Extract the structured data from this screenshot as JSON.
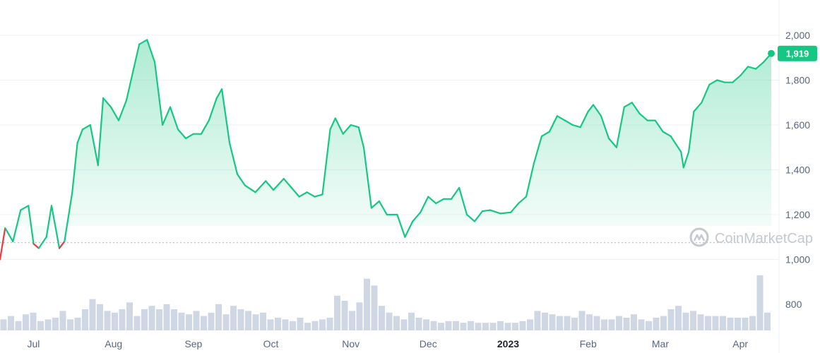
{
  "chart_data": {
    "type": "area",
    "title": "",
    "xlabel": "",
    "ylabel": "",
    "ylim": [
      900,
      2100
    ],
    "y_ticks": [
      1000,
      1200,
      1400,
      1600,
      1800,
      2000
    ],
    "y_tick_labels": [
      "1,000",
      "1,200",
      "1,400",
      "1,600",
      "1,800",
      "2,000"
    ],
    "volume_tick_label": "800",
    "x_tick_labels": [
      "Jul",
      "Aug",
      "Sep",
      "Oct",
      "Nov",
      "Dec",
      "2023",
      "Feb",
      "Mar",
      "Apr"
    ],
    "x_start": "2022-06-18",
    "x_end": "2023-04-13",
    "reference_value": 1075,
    "current_value": 1919,
    "current_value_label": "1,919",
    "watermark": "CoinMarketCap",
    "grid": true,
    "colors": {
      "up": "#16c784",
      "down": "#ea3943",
      "volume": "#cfd6e4",
      "grid": "#eff2f5",
      "axis_text": "#58667e"
    },
    "series": [
      {
        "x": [
          "2022-06-18",
          "2022-06-20",
          "2022-06-23",
          "2022-06-26",
          "2022-06-29",
          "2022-07-01",
          "2022-07-03",
          "2022-07-06",
          "2022-07-08",
          "2022-07-11",
          "2022-07-13",
          "2022-07-16",
          "2022-07-18",
          "2022-07-20",
          "2022-07-23",
          "2022-07-26",
          "2022-07-28",
          "2022-07-31",
          "2022-08-03",
          "2022-08-06",
          "2022-08-09",
          "2022-08-11",
          "2022-08-14",
          "2022-08-17",
          "2022-08-20",
          "2022-08-23",
          "2022-08-26",
          "2022-08-29",
          "2022-09-01",
          "2022-09-04",
          "2022-09-07",
          "2022-09-10",
          "2022-09-12",
          "2022-09-15",
          "2022-09-18",
          "2022-09-21",
          "2022-09-25",
          "2022-09-29",
          "2022-10-02",
          "2022-10-06",
          "2022-10-09",
          "2022-10-12",
          "2022-10-15",
          "2022-10-18",
          "2022-10-21",
          "2022-10-24",
          "2022-10-26",
          "2022-10-29",
          "2022-11-01",
          "2022-11-04",
          "2022-11-06",
          "2022-11-09",
          "2022-11-12",
          "2022-11-15",
          "2022-11-19",
          "2022-11-22",
          "2022-11-25",
          "2022-11-28",
          "2022-12-01",
          "2022-12-04",
          "2022-12-07",
          "2022-12-10",
          "2022-12-13",
          "2022-12-16",
          "2022-12-19",
          "2022-12-22",
          "2022-12-25",
          "2022-12-29",
          "2023-01-02",
          "2023-01-05",
          "2023-01-08",
          "2023-01-11",
          "2023-01-14",
          "2023-01-17",
          "2023-01-20",
          "2023-01-23",
          "2023-01-26",
          "2023-01-29",
          "2023-02-01",
          "2023-02-03",
          "2023-02-06",
          "2023-02-09",
          "2023-02-12",
          "2023-02-15",
          "2023-02-18",
          "2023-02-21",
          "2023-02-24",
          "2023-02-27",
          "2023-03-02",
          "2023-03-05",
          "2023-03-09",
          "2023-03-10",
          "2023-03-12",
          "2023-03-14",
          "2023-03-17",
          "2023-03-20",
          "2023-03-23",
          "2023-03-26",
          "2023-03-29",
          "2023-04-01",
          "2023-04-04",
          "2023-04-07",
          "2023-04-10",
          "2023-04-13"
        ],
        "y": [
          1000,
          1140,
          1080,
          1220,
          1240,
          1070,
          1050,
          1100,
          1240,
          1050,
          1080,
          1300,
          1520,
          1580,
          1600,
          1420,
          1720,
          1680,
          1620,
          1710,
          1860,
          1960,
          1980,
          1880,
          1600,
          1680,
          1580,
          1540,
          1560,
          1560,
          1620,
          1720,
          1760,
          1520,
          1380,
          1330,
          1300,
          1350,
          1310,
          1360,
          1320,
          1280,
          1300,
          1280,
          1290,
          1580,
          1630,
          1560,
          1600,
          1590,
          1500,
          1230,
          1260,
          1200,
          1200,
          1100,
          1170,
          1210,
          1280,
          1250,
          1270,
          1270,
          1320,
          1200,
          1170,
          1215,
          1220,
          1205,
          1210,
          1250,
          1280,
          1430,
          1550,
          1570,
          1640,
          1620,
          1600,
          1590,
          1660,
          1690,
          1640,
          1540,
          1500,
          1680,
          1700,
          1650,
          1620,
          1620,
          1570,
          1550,
          1480,
          1410,
          1480,
          1660,
          1700,
          1780,
          1800,
          1790,
          1790,
          1820,
          1860,
          1850,
          1880,
          1919
        ]
      }
    ],
    "volume": [
      4,
      6,
      3,
      7,
      8,
      3,
      4,
      5,
      9,
      4,
      5,
      10,
      16,
      13,
      9,
      8,
      10,
      14,
      6,
      10,
      12,
      10,
      13,
      10,
      8,
      7,
      9,
      6,
      8,
      13,
      7,
      12,
      10,
      9,
      7,
      8,
      4,
      5,
      4,
      3,
      5,
      2,
      3,
      4,
      5,
      18,
      15,
      9,
      14,
      28,
      24,
      12,
      8,
      6,
      4,
      8,
      5,
      4,
      3,
      2,
      3,
      3,
      2,
      3,
      2,
      2,
      2,
      3,
      2,
      2,
      3,
      4,
      9,
      8,
      7,
      6,
      6,
      5,
      9,
      7,
      6,
      4,
      4,
      6,
      5,
      7,
      4,
      3,
      5,
      6,
      10,
      12,
      8,
      9,
      7,
      6,
      6,
      6,
      5,
      5,
      5,
      6,
      30,
      8
    ]
  }
}
